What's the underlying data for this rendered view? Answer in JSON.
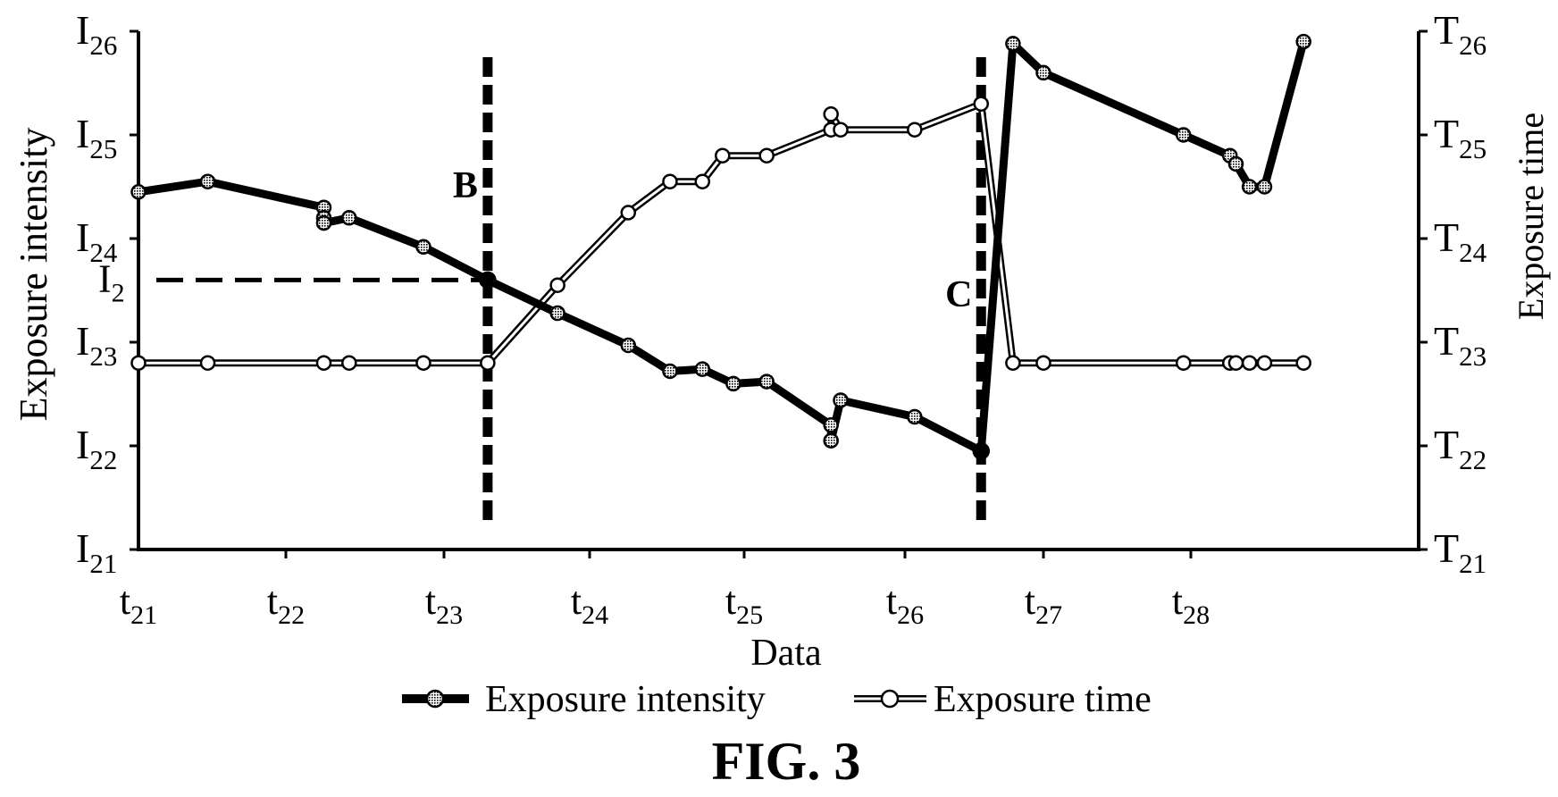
{
  "figure_label": "FIG. 3",
  "chart_data": {
    "type": "line",
    "xlabel": "Data",
    "ylabel_left": "Exposure intensity",
    "ylabel_right": "Exposure time",
    "x_ticks": [
      {
        "base": "t",
        "sub": "21",
        "x": 21
      },
      {
        "base": "t",
        "sub": "22",
        "x": 22
      },
      {
        "base": "t",
        "sub": "23",
        "x": 23
      },
      {
        "base": "t",
        "sub": "24",
        "x": 24
      },
      {
        "base": "t",
        "sub": "25",
        "x": 25
      },
      {
        "base": "t",
        "sub": "26",
        "x": 26
      },
      {
        "base": "t",
        "sub": "27",
        "x": 27
      },
      {
        "base": "t",
        "sub": "28",
        "x": 28
      }
    ],
    "y_left_ticks": [
      {
        "base": "I",
        "sub": "21",
        "y": 21
      },
      {
        "base": "I",
        "sub": "22",
        "y": 22
      },
      {
        "base": "I",
        "sub": "23",
        "y": 23
      },
      {
        "base": "I",
        "sub": "24",
        "y": 24
      },
      {
        "base": "I",
        "sub": "25",
        "y": 25
      },
      {
        "base": "I",
        "sub": "26",
        "y": 26
      }
    ],
    "y_right_ticks": [
      {
        "base": "T",
        "sub": "21",
        "y": 21
      },
      {
        "base": "T",
        "sub": "22",
        "y": 22
      },
      {
        "base": "T",
        "sub": "23",
        "y": 23
      },
      {
        "base": "T",
        "sub": "24",
        "y": 24
      },
      {
        "base": "T",
        "sub": "25",
        "y": 25
      },
      {
        "base": "T",
        "sub": "26",
        "y": 26
      }
    ],
    "xlim": [
      21,
      28.75
    ],
    "ylim": [
      21,
      26
    ],
    "series": [
      {
        "name": "Exposure intensity",
        "style": "thick-black",
        "points": [
          {
            "x": 21.0,
            "y": 24.45
          },
          {
            "x": 21.47,
            "y": 24.55
          },
          {
            "x": 22.24,
            "y": 24.3
          },
          {
            "x": 22.24,
            "y": 24.2
          },
          {
            "x": 22.24,
            "y": 24.15
          },
          {
            "x": 22.4,
            "y": 24.2
          },
          {
            "x": 22.87,
            "y": 23.92
          },
          {
            "x": 23.3,
            "y": 23.6
          },
          {
            "x": 23.78,
            "y": 23.28
          },
          {
            "x": 24.25,
            "y": 22.97
          },
          {
            "x": 24.52,
            "y": 22.72
          },
          {
            "x": 24.73,
            "y": 22.74
          },
          {
            "x": 24.93,
            "y": 22.6
          },
          {
            "x": 25.14,
            "y": 22.62
          },
          {
            "x": 25.54,
            "y": 22.2
          },
          {
            "x": 25.54,
            "y": 22.05
          },
          {
            "x": 25.6,
            "y": 22.44
          },
          {
            "x": 26.07,
            "y": 22.28
          },
          {
            "x": 26.55,
            "y": 21.95
          },
          {
            "x": 26.78,
            "y": 25.88
          },
          {
            "x": 27.0,
            "y": 25.6
          },
          {
            "x": 27.95,
            "y": 25.0
          },
          {
            "x": 28.26,
            "y": 24.8
          },
          {
            "x": 28.3,
            "y": 24.72
          },
          {
            "x": 28.39,
            "y": 24.5
          },
          {
            "x": 28.49,
            "y": 24.5
          },
          {
            "x": 28.75,
            "y": 25.9
          }
        ],
        "special_markers": [
          {
            "x": 23.3,
            "y": 23.6
          },
          {
            "x": 26.55,
            "y": 21.95
          }
        ]
      },
      {
        "name": "Exposure time",
        "style": "double-outline",
        "points": [
          {
            "x": 21.0,
            "y": 22.8
          },
          {
            "x": 21.47,
            "y": 22.8
          },
          {
            "x": 22.24,
            "y": 22.8
          },
          {
            "x": 22.4,
            "y": 22.8
          },
          {
            "x": 22.87,
            "y": 22.8
          },
          {
            "x": 23.3,
            "y": 22.8
          },
          {
            "x": 23.78,
            "y": 23.55
          },
          {
            "x": 24.25,
            "y": 24.25
          },
          {
            "x": 24.52,
            "y": 24.55
          },
          {
            "x": 24.73,
            "y": 24.55
          },
          {
            "x": 24.86,
            "y": 24.8
          },
          {
            "x": 25.14,
            "y": 24.8
          },
          {
            "x": 25.54,
            "y": 25.05
          },
          {
            "x": 25.54,
            "y": 25.2
          },
          {
            "x": 25.6,
            "y": 25.05
          },
          {
            "x": 26.07,
            "y": 25.05
          },
          {
            "x": 26.55,
            "y": 25.3
          },
          {
            "x": 26.78,
            "y": 22.8
          },
          {
            "x": 27.0,
            "y": 22.8
          },
          {
            "x": 27.95,
            "y": 22.8
          },
          {
            "x": 28.26,
            "y": 22.8
          },
          {
            "x": 28.3,
            "y": 22.8
          },
          {
            "x": 28.39,
            "y": 22.8
          },
          {
            "x": 28.49,
            "y": 22.8
          },
          {
            "x": 28.75,
            "y": 22.8
          }
        ]
      }
    ],
    "markers": [
      {
        "label": "B",
        "x": 23.3,
        "y_from": 21.25,
        "y_to": 25.75
      },
      {
        "label": "C",
        "x": 26.55,
        "y_from": 21.25,
        "y_to": 25.75
      }
    ],
    "reference_line": {
      "label": "I",
      "label_sub": "2",
      "y": 23.6,
      "x_from": 21.0,
      "x_to": 23.3
    },
    "grid": false,
    "legend_position": "bottom"
  }
}
